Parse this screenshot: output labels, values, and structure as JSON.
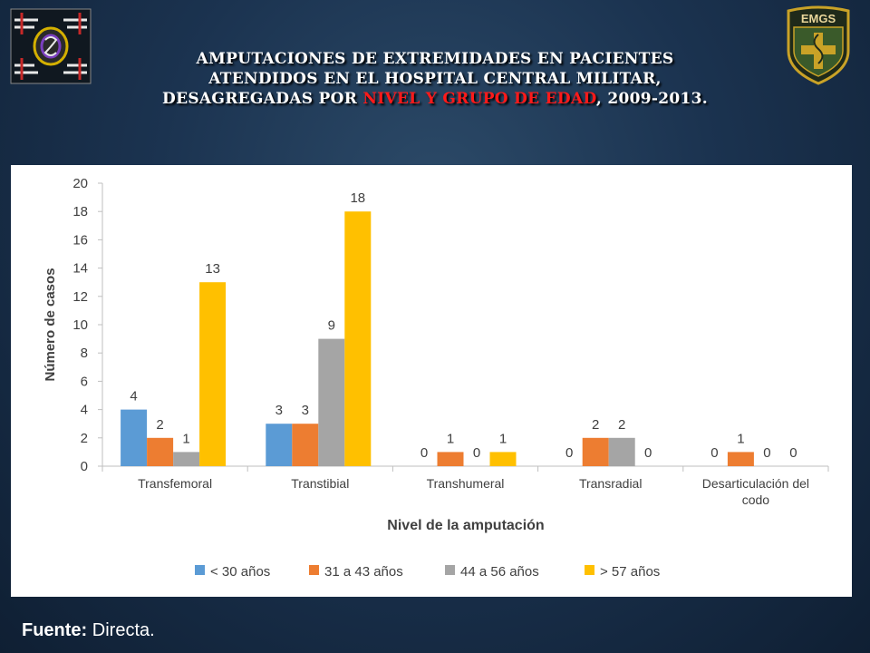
{
  "title": {
    "line1": "AMPUTACIONES DE EXTREMIDADES EN PACIENTES",
    "line2": "ATENDIDOS EN EL HOSPITAL CENTRAL MILITAR,",
    "line3_prefix": "DESAGREGADAS POR ",
    "line3_highlight": "NIVEL Y GRUPO DE EDAD",
    "line3_suffix": ", 2009-2013."
  },
  "logos": {
    "left": "hcm-logo",
    "right": "emgs-logo",
    "right_text": "EMGS"
  },
  "source": {
    "label": "Fuente:",
    "value": " Directa."
  },
  "colors": {
    "highlight": "#ff1a1a",
    "series": [
      "#5b9bd5",
      "#ed7d31",
      "#a5a5a5",
      "#ffc000"
    ]
  },
  "chart_data": {
    "type": "bar",
    "title": "",
    "xlabel": "Nivel de la amputación",
    "ylabel": "Número de casos",
    "ylim": [
      0,
      20
    ],
    "yticks": [
      0,
      2,
      4,
      6,
      8,
      10,
      12,
      14,
      16,
      18,
      20
    ],
    "grid": false,
    "legend": "bottom",
    "categories": [
      [
        "Transfemoral"
      ],
      [
        "Transtibial"
      ],
      [
        "Transhumeral"
      ],
      [
        "Transradial"
      ],
      [
        "Desarticulación del",
        "codo"
      ]
    ],
    "series": [
      {
        "name": "< 30 años",
        "values": [
          4,
          3,
          0,
          0,
          0
        ]
      },
      {
        "name": "31 a 43 años",
        "values": [
          2,
          3,
          1,
          2,
          1
        ]
      },
      {
        "name": "44 a 56 años",
        "values": [
          1,
          9,
          0,
          2,
          0
        ]
      },
      {
        "name": "> 57 años",
        "values": [
          13,
          18,
          1,
          0,
          0
        ]
      }
    ],
    "data_labels_shown": [
      [
        true,
        true,
        true,
        true,
        true
      ],
      [
        true,
        true,
        true,
        true,
        true
      ],
      [
        true,
        true,
        true,
        true,
        true
      ],
      [
        true,
        true,
        true,
        true,
        true
      ]
    ]
  }
}
